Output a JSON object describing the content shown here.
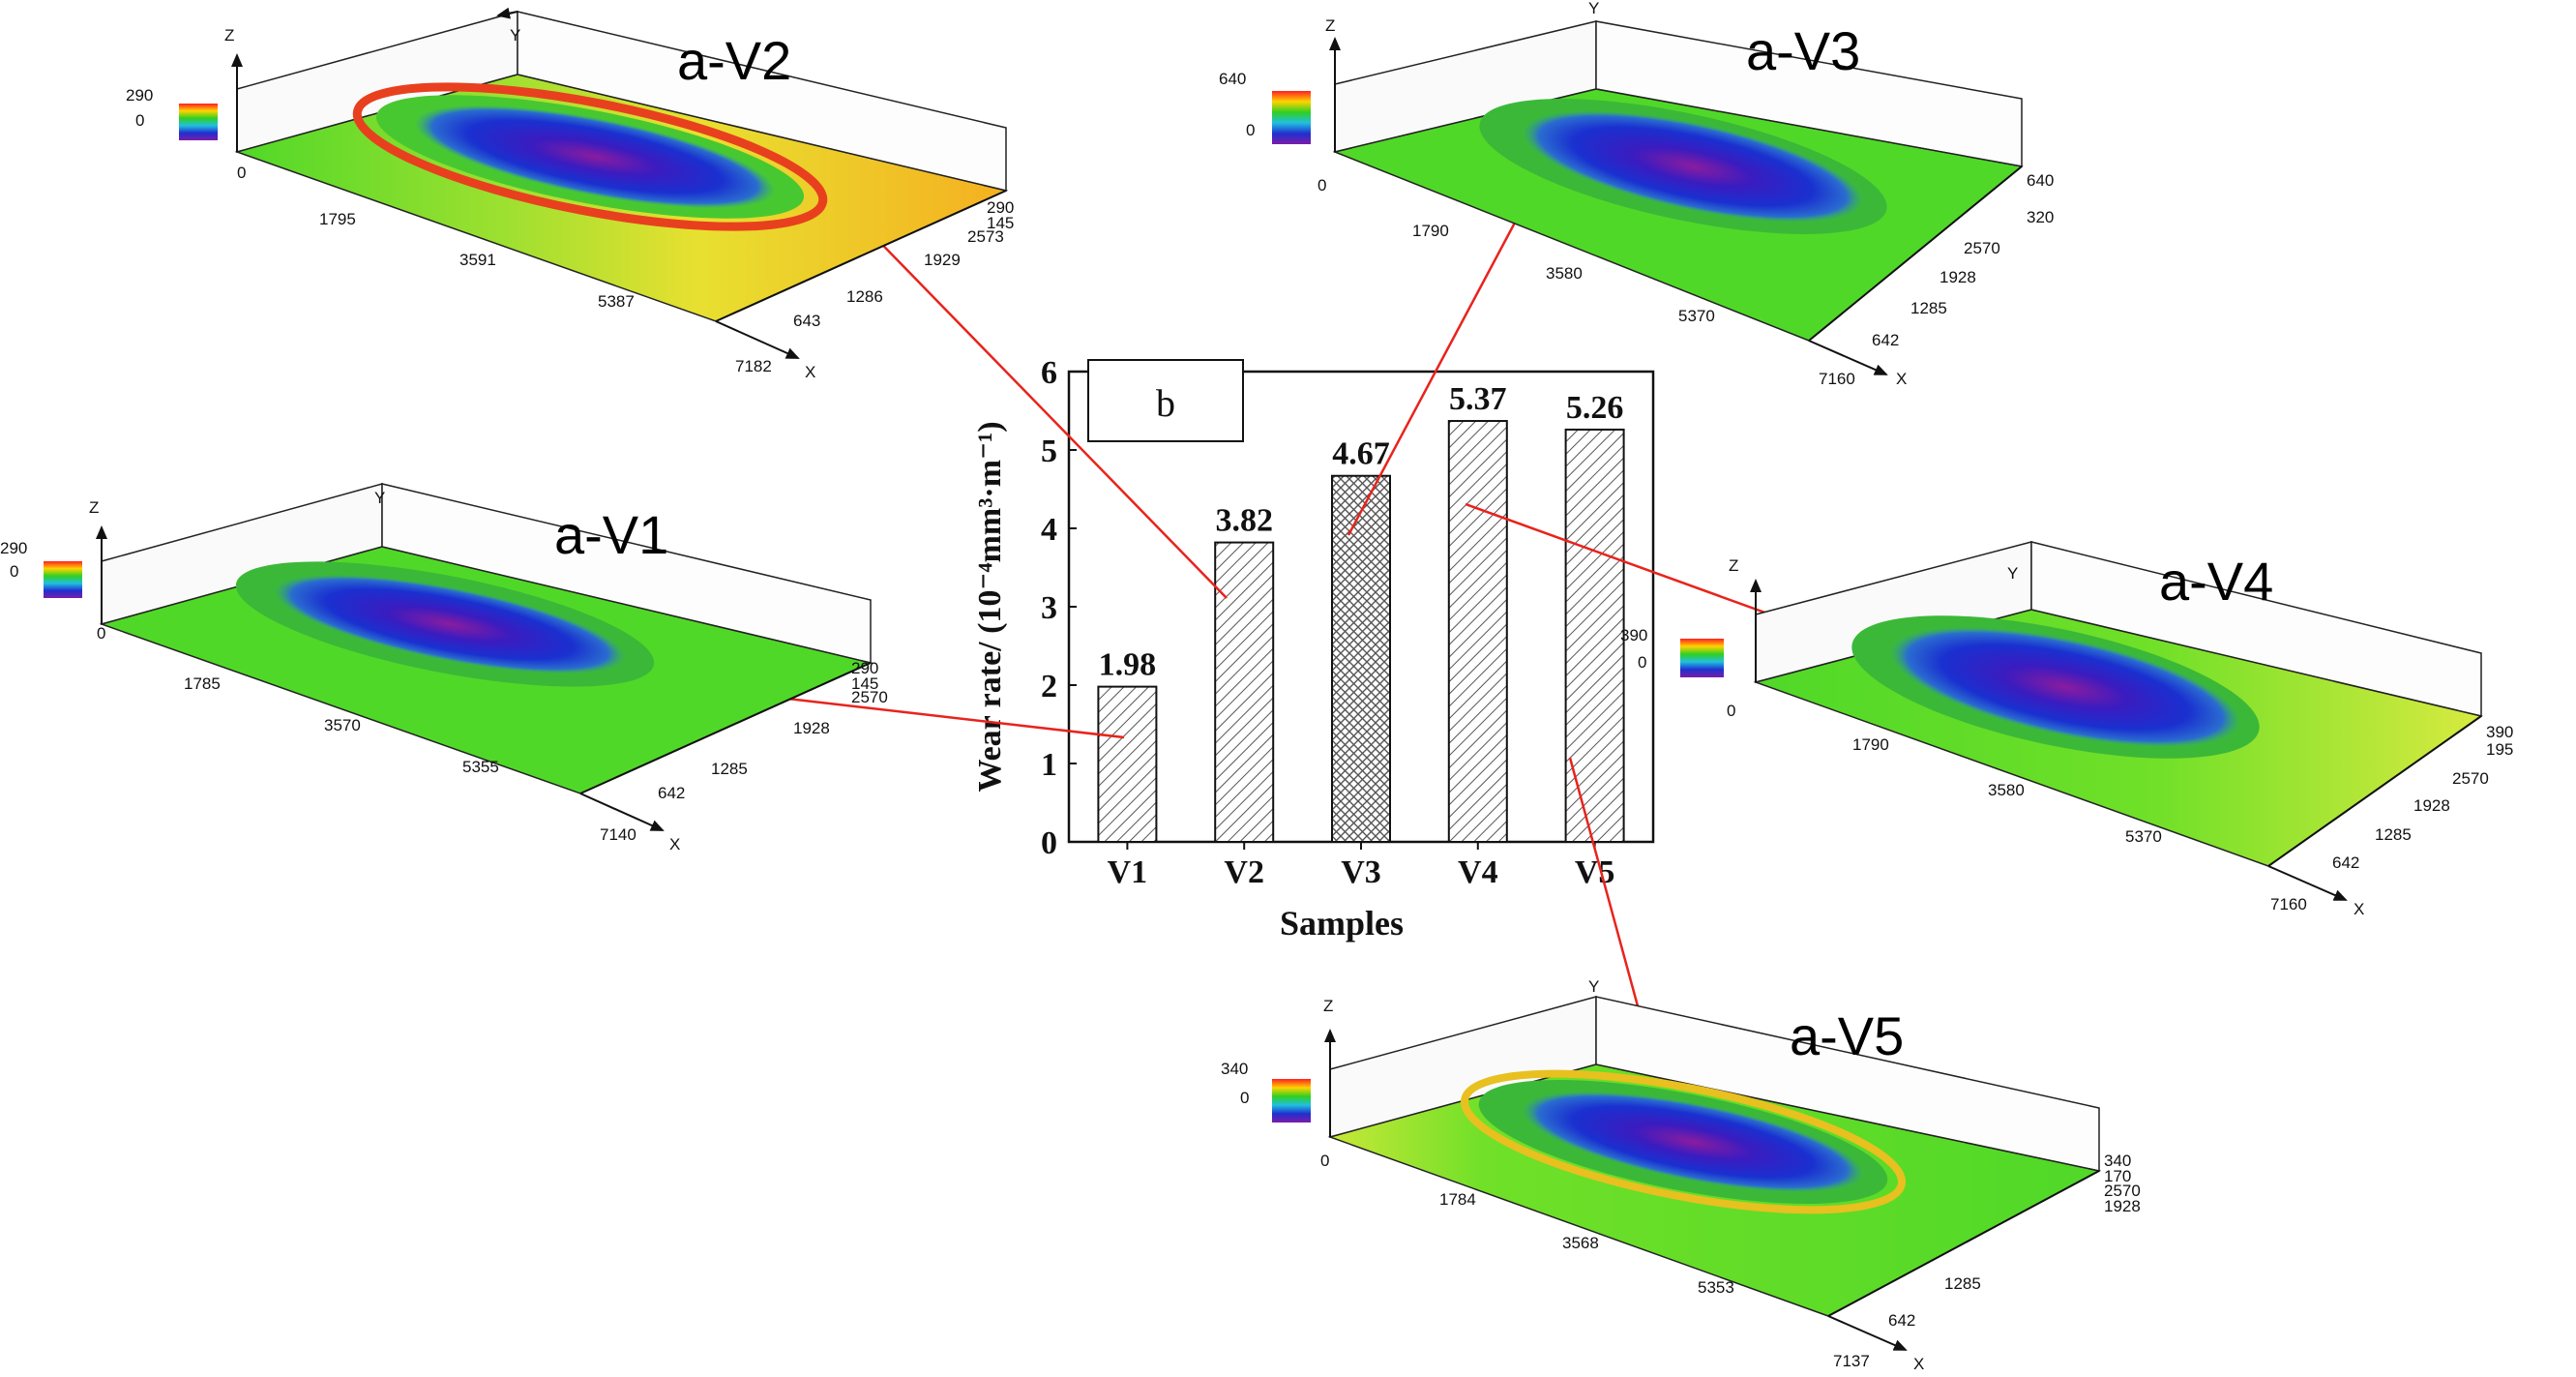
{
  "chart_data": {
    "type": "bar",
    "panel_label": "b",
    "categories": [
      "V1",
      "V2",
      "V3",
      "V4",
      "V5"
    ],
    "values": [
      1.98,
      3.82,
      4.67,
      5.37,
      5.26
    ],
    "value_labels": [
      "1.98",
      "3.82",
      "4.67",
      "5.37",
      "5.26"
    ],
    "xlabel": "Samples",
    "ylabel": "Wear rate/ (10⁻⁴mm³·m⁻¹)",
    "ylim": [
      0,
      6
    ],
    "yticks": [
      "0",
      "1",
      "2",
      "3",
      "4",
      "5",
      "6"
    ],
    "grid": false,
    "legend": "none"
  },
  "surface_plots": [
    {
      "id": "V2",
      "title": "a-V2",
      "axis_letters": {
        "z": "Z",
        "y": "Y",
        "x": "X"
      },
      "colorbar": {
        "max": "290",
        "min": "0"
      },
      "z_origin": "0",
      "x_ticks": [
        "1795",
        "3591",
        "5387",
        "7182"
      ],
      "y_ticks": [
        "643",
        "1286",
        "1929",
        "2573"
      ],
      "z_ticks": [
        "290",
        "145"
      ]
    },
    {
      "id": "V3",
      "title": "a-V3",
      "axis_letters": {
        "z": "Z",
        "y": "Y",
        "x": "X"
      },
      "colorbar": {
        "max": "640",
        "min": "0"
      },
      "z_origin": "0",
      "x_ticks": [
        "1790",
        "3580",
        "5370",
        "7160"
      ],
      "y_ticks": [
        "642",
        "1285",
        "1928",
        "2570"
      ],
      "z_ticks": [
        "640",
        "320"
      ]
    },
    {
      "id": "V1",
      "title": "a-V1",
      "axis_letters": {
        "z": "Z",
        "y": "Y",
        "x": "X"
      },
      "colorbar": {
        "max": "290",
        "min": "0"
      },
      "z_origin": "0",
      "x_ticks": [
        "1785",
        "3570",
        "5355",
        "7140"
      ],
      "y_ticks": [
        "642",
        "1285",
        "1928",
        "2570"
      ],
      "z_ticks": [
        "290",
        "145"
      ]
    },
    {
      "id": "V4",
      "title": "a-V4",
      "axis_letters": {
        "z": "Z",
        "y": "Y",
        "x": "X"
      },
      "colorbar": {
        "max": "390",
        "min": "0"
      },
      "z_origin": "0",
      "x_ticks": [
        "1790",
        "3580",
        "5370",
        "7160"
      ],
      "y_ticks": [
        "642",
        "1285",
        "1928",
        "2570"
      ],
      "z_ticks": [
        "390",
        "195"
      ]
    },
    {
      "id": "V5",
      "title": "a-V5",
      "axis_letters": {
        "z": "Z",
        "y": "Y",
        "x": "X"
      },
      "colorbar": {
        "max": "340",
        "min": "0"
      },
      "z_origin": "0",
      "x_ticks": [
        "1784",
        "3568",
        "5353",
        "7137"
      ],
      "y_ticks": [
        "642",
        "1285",
        "1928",
        "2570"
      ],
      "z_ticks": [
        "340",
        "170"
      ]
    }
  ],
  "colors": {
    "arrow": "#e8231c",
    "bar_fill": "#ffffff",
    "bar_hatch": "#555555",
    "surface_base": "#57e020",
    "wear_blue": "#1a2cc8",
    "wear_purple": "#7a1ca8",
    "rim_red": "#e8401e",
    "surface_yellow": "#e6e830",
    "surface_orange": "#f0b020"
  }
}
